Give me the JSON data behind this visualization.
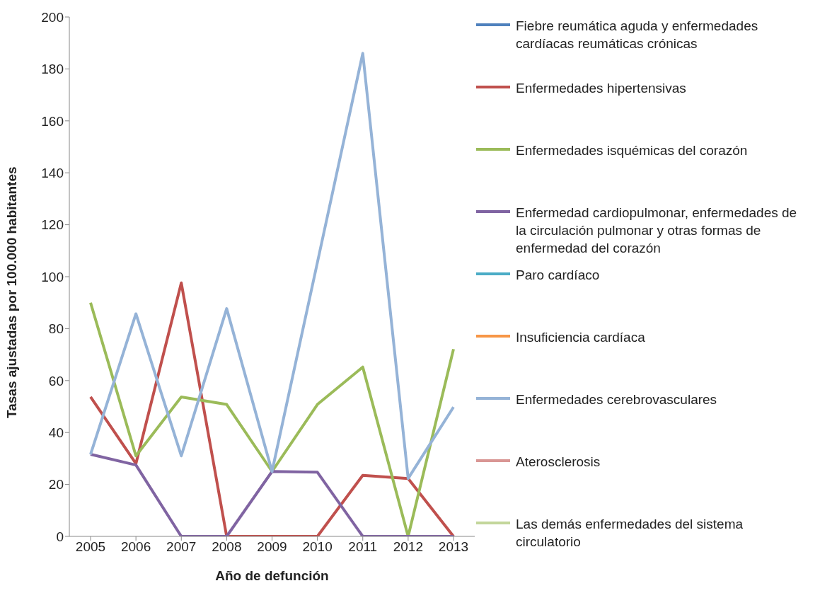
{
  "chart_data": {
    "type": "line",
    "xlabel": "Año de defunción",
    "ylabel": "Tasas ajustadas por 100.000 habitantes",
    "categories": [
      "2005",
      "2006",
      "2007",
      "2008",
      "2009",
      "2010",
      "2011",
      "2012",
      "2013"
    ],
    "series": [
      {
        "name": "Fiebre reumática aguda y enfermedades cardíacas reumáticas crónicas",
        "color": "#4f81bd",
        "values": [
          null,
          null,
          null,
          null,
          null,
          null,
          null,
          null,
          null
        ]
      },
      {
        "name": "Enfermedades hipertensivas",
        "color": "#c0504d",
        "values": [
          53.7,
          28,
          97.6,
          0,
          0,
          0,
          23.5,
          22.3,
          0
        ]
      },
      {
        "name": "Enfermedades isquémicas del corazón",
        "color": "#9bbb59",
        "values": [
          90,
          31,
          53.7,
          50.8,
          25,
          50.8,
          65.2,
          0,
          72.1
        ]
      },
      {
        "name": "Enfermedad cardiopulmonar, enfermedades de la circulación pulmonar y otras formas de enfermedad del corazón",
        "color": "#8064a2",
        "values": [
          31.6,
          27.5,
          0,
          0,
          25,
          24.7,
          0,
          0,
          0
        ]
      },
      {
        "name": "Paro cardíaco",
        "color": "#4bacc6",
        "values": [
          null,
          null,
          null,
          null,
          null,
          null,
          null,
          null,
          null
        ]
      },
      {
        "name": "Insuficiencia cardíaca",
        "color": "#f79646",
        "values": [
          null,
          null,
          null,
          null,
          null,
          null,
          null,
          null,
          null
        ]
      },
      {
        "name": "Enfermedades cerebrovasculares",
        "color": "#95b3d7",
        "values": [
          31.6,
          85.7,
          31,
          87.7,
          25,
          105.5,
          186,
          22.3,
          49.8
        ]
      },
      {
        "name": "Aterosclerosis",
        "color": "#d99694",
        "values": [
          null,
          null,
          null,
          null,
          null,
          null,
          null,
          null,
          null
        ]
      },
      {
        "name": "Las demás enfermedades del sistema circulatorio",
        "color": "#c3d69b",
        "values": [
          null,
          null,
          null,
          null,
          null,
          null,
          null,
          null,
          null
        ]
      }
    ],
    "ylim": [
      0,
      200
    ],
    "yticks": [
      0,
      20,
      40,
      60,
      80,
      100,
      120,
      140,
      160,
      180,
      200
    ],
    "grid": false,
    "legend": "right",
    "marker": "none",
    "line_style": "solid"
  }
}
